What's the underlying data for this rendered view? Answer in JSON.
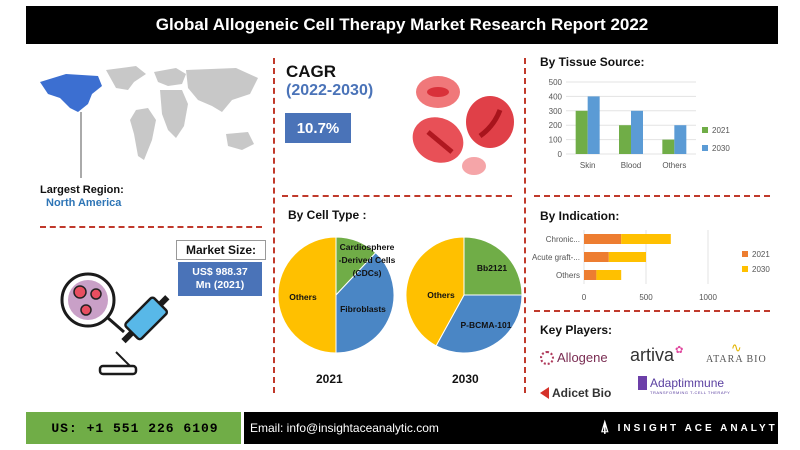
{
  "header": {
    "title": "Global Allogeneic Cell Therapy Market Research Report 2022"
  },
  "region": {
    "label": "Largest Region:",
    "value": "North America"
  },
  "cagr": {
    "label": "CAGR",
    "period": "(2022-2030)",
    "value": "10.7%"
  },
  "market_size": {
    "label": "Market Size:",
    "value_line1": "US$ 988.37",
    "value_line2": "Mn (2021)"
  },
  "cell_type": {
    "title": "By Cell Type :",
    "year_left": "2021",
    "year_right": "2030",
    "left_labels": {
      "cds": "Cardiosphere -Derived Cells (CDCs)",
      "fib": "Fibroblasts",
      "others": "Others"
    },
    "right_labels": {
      "bb": "Bb2121",
      "pb": "P-BCMA-101",
      "others": "Others"
    }
  },
  "chart_data": [
    {
      "type": "bar",
      "title": "By Tissue Source:",
      "categories": [
        "Skin",
        "Blood",
        "Others"
      ],
      "series": [
        {
          "name": "2021",
          "values": [
            300,
            200,
            100
          ],
          "color": "#70ad47"
        },
        {
          "name": "2030",
          "values": [
            400,
            300,
            200
          ],
          "color": "#5b9bd5"
        }
      ],
      "yticks": [
        "500",
        "400",
        "300",
        "200",
        "100",
        "0"
      ],
      "ylim": [
        0,
        500
      ],
      "legend": "right",
      "grid": true
    },
    {
      "type": "bar",
      "orientation": "horizontal",
      "title": "By Indication:",
      "categories": [
        "Chronic...",
        "Acute graft-...",
        "Others"
      ],
      "series": [
        {
          "name": "2021",
          "values": [
            300,
            200,
            100
          ],
          "color": "#ed7d31"
        },
        {
          "name": "2030",
          "values": [
            400,
            300,
            200
          ],
          "color": "#ffc000"
        }
      ],
      "xticks": [
        "0",
        "500",
        "1000"
      ],
      "xlim": [
        0,
        1000
      ],
      "legend": "right",
      "grid": true
    },
    {
      "type": "pie",
      "year": "2021",
      "slices": [
        {
          "label": "Cardiosphere -Derived Cells (CDCs)",
          "value": 12,
          "color": "#70ad47"
        },
        {
          "label": "Fibroblasts",
          "value": 38,
          "color": "#4a86c5"
        },
        {
          "label": "Others",
          "value": 50,
          "color": "#ffc000"
        }
      ]
    },
    {
      "type": "pie",
      "year": "2030",
      "slices": [
        {
          "label": "Bb2121",
          "value": 25,
          "color": "#70ad47"
        },
        {
          "label": "P-BCMA-101",
          "value": 33,
          "color": "#4a86c5"
        },
        {
          "label": "Others",
          "value": 42,
          "color": "#ffc000"
        }
      ]
    }
  ],
  "key_players": {
    "title": "Key Players:",
    "logos": [
      "Allogene",
      "artiva",
      "ATARA BIO",
      "Adicet Bio",
      "Adaptimmune"
    ],
    "adaptimmune_tagline": "TRANSFORMING T-CELL THERAPY"
  },
  "footer": {
    "phone": "US: +1 551 226 6109",
    "email": "Email: info@insightaceanalytic.com",
    "brand": "INSIGHT ACE ANALYTIC"
  },
  "icons": [
    "world-map",
    "blood-cells",
    "syringe-petri",
    "insightace-logo"
  ]
}
